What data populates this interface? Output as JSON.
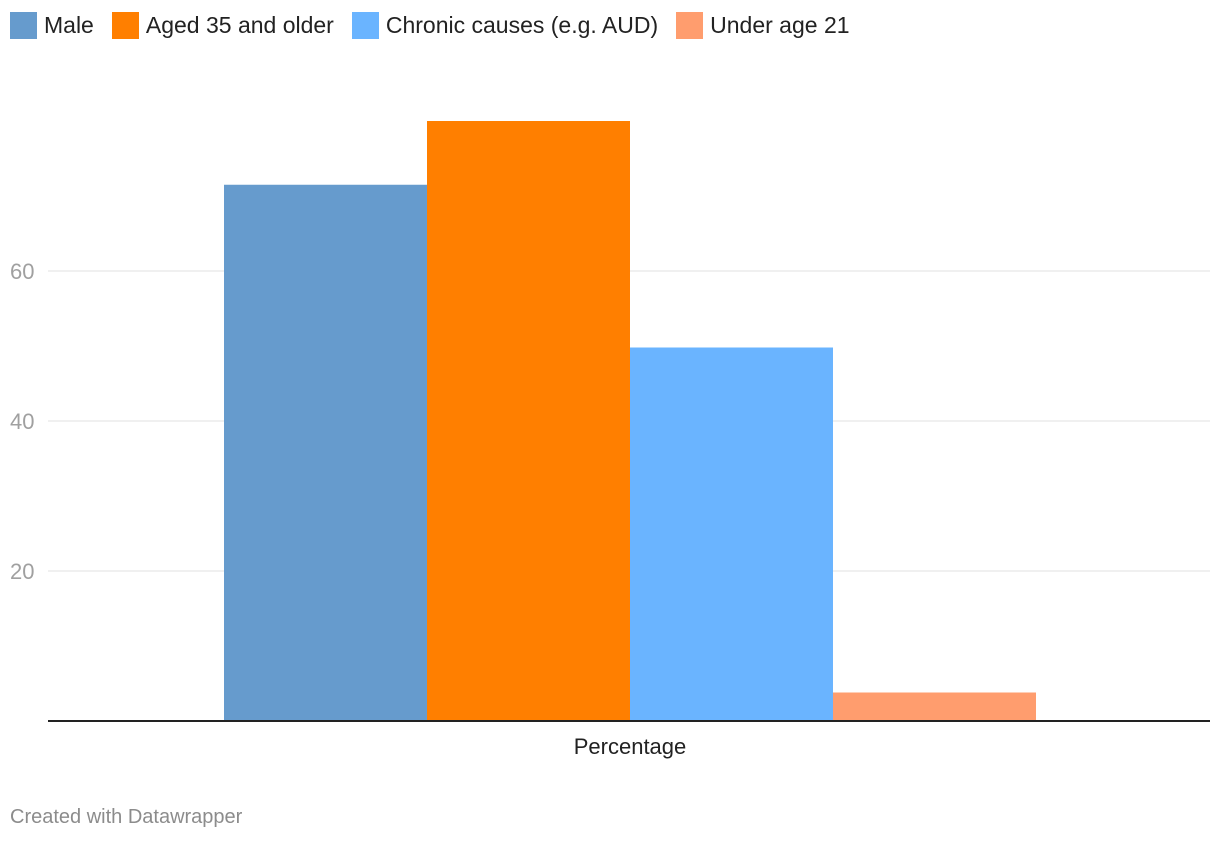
{
  "chart_data": {
    "type": "bar",
    "title": "",
    "xlabel": "",
    "ylabel": "",
    "categories": [
      "Percentage"
    ],
    "series": [
      {
        "name": "Male",
        "values": [
          71.5
        ],
        "color": "#669bcd"
      },
      {
        "name": "Aged 35 and older",
        "values": [
          80
        ],
        "color": "#ff7f00"
      },
      {
        "name": "Chronic causes (e.g. AUD)",
        "values": [
          49.8
        ],
        "color": "#6ab4ff"
      },
      {
        "name": "Under age 21",
        "values": [
          3.8
        ],
        "color": "#ff9d6e"
      }
    ],
    "ylim": [
      0,
      80
    ],
    "yticks": [
      20,
      40,
      60
    ],
    "ytick_labels": [
      "20",
      "40",
      "60"
    ],
    "grid": true,
    "legend": "top-left"
  },
  "footer": {
    "credit": "Created with Datawrapper"
  }
}
